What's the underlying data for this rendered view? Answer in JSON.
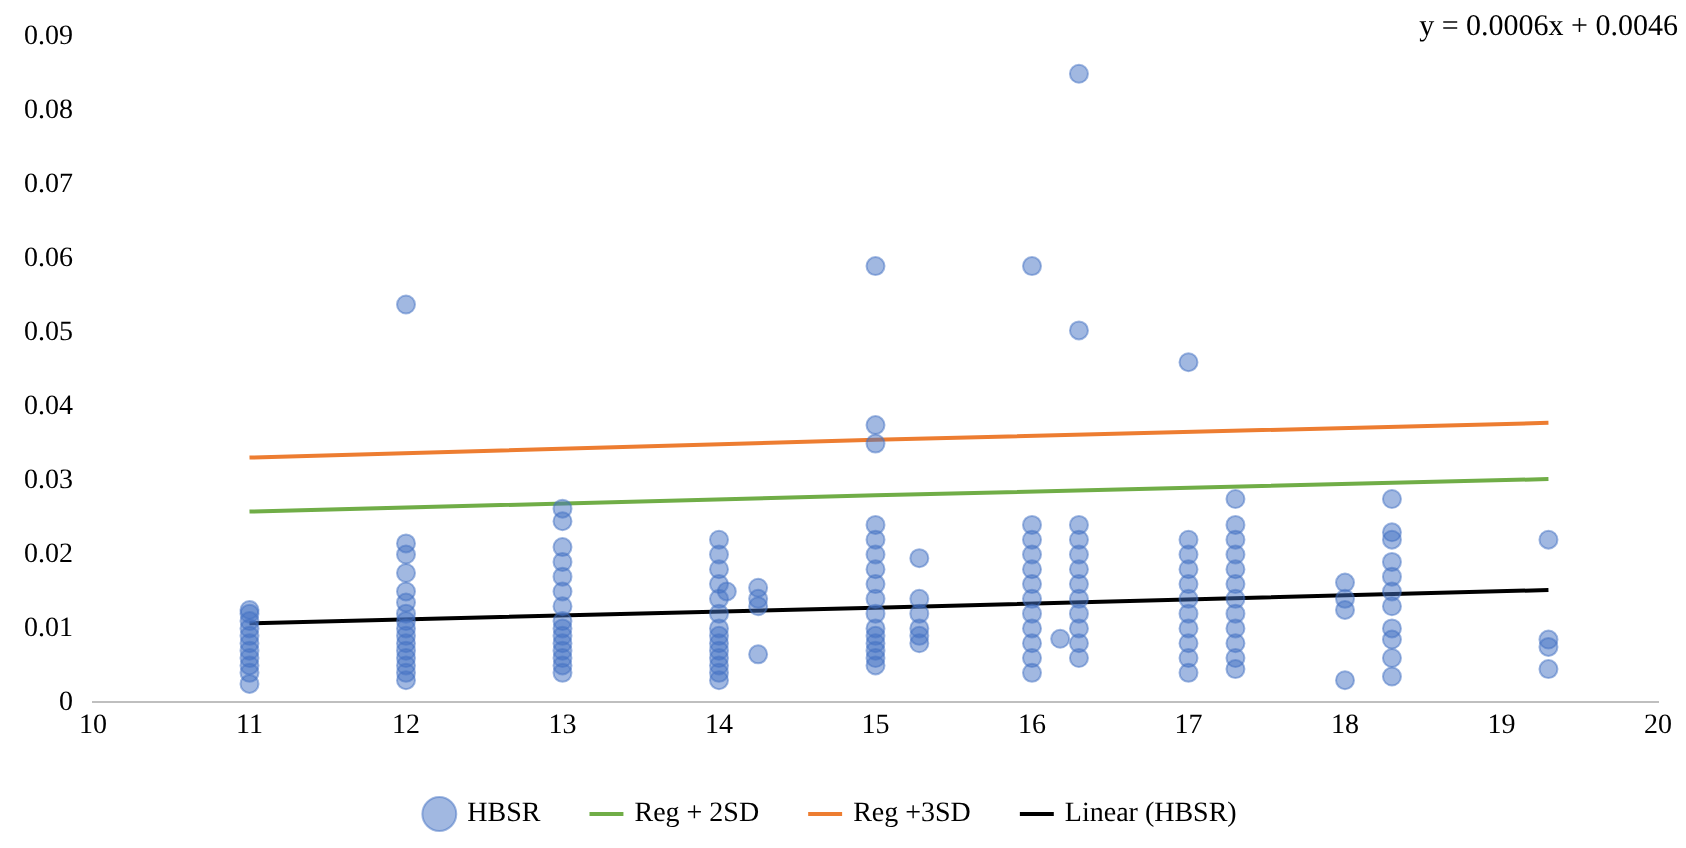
{
  "chart_data": {
    "type": "scatter",
    "xlim": [
      10,
      20
    ],
    "xticks": [
      10,
      11,
      12,
      13,
      14,
      15,
      16,
      17,
      18,
      19,
      20
    ],
    "ylim": [
      0,
      0.09
    ],
    "yticks": [
      0,
      0.01,
      0.02,
      0.03,
      0.04,
      0.05,
      0.06,
      0.07,
      0.08,
      0.09
    ],
    "grid": false,
    "legend": "bottom",
    "annotations": [
      "y = 0.0006x + 0.0046"
    ],
    "series": [
      {
        "name": "HBSR",
        "type": "scatter",
        "marker": "circle",
        "color": "#4472c4",
        "x": [
          11,
          11,
          11,
          11,
          11,
          11,
          11,
          11,
          11,
          11,
          11,
          12,
          12,
          12,
          12,
          12,
          12,
          12,
          12,
          12,
          12,
          12,
          12,
          12,
          12,
          12,
          12,
          13,
          13,
          13,
          13,
          13,
          13,
          13,
          13,
          13,
          13,
          13,
          13,
          13,
          13,
          13,
          14,
          14,
          14,
          14,
          14,
          14,
          14,
          14,
          14,
          14,
          14,
          14,
          14,
          14,
          14.05,
          14.25,
          14.25,
          14.25,
          14.25,
          15,
          15,
          15,
          15,
          15,
          15,
          15,
          15,
          15,
          15,
          15,
          15,
          15,
          15,
          15,
          15,
          15.28,
          15.28,
          15.28,
          15.28,
          15.28,
          15.28,
          16,
          16,
          16,
          16,
          16,
          16,
          16,
          16,
          16,
          16,
          16,
          16,
          16.18,
          16.3,
          16.3,
          16.3,
          16.3,
          16.3,
          16.3,
          16.3,
          16.3,
          16.3,
          16.3,
          16.3,
          16.3,
          17,
          17,
          17,
          17,
          17,
          17,
          17,
          17,
          17,
          17,
          17,
          17.3,
          17.3,
          17.3,
          17.3,
          17.3,
          17.3,
          17.3,
          17.3,
          17.3,
          17.3,
          17.3,
          17.3,
          18,
          18,
          18,
          18,
          18.3,
          18.3,
          18.3,
          18.3,
          18.3,
          18.3,
          18.3,
          18.3,
          18.3,
          18.3,
          18.3,
          19.3,
          19.3,
          19.3,
          19.3
        ],
        "values": [
          0.0125,
          0.012,
          0.011,
          0.01,
          0.009,
          0.008,
          0.007,
          0.006,
          0.005,
          0.004,
          0.0025,
          0.0538,
          0.0215,
          0.02,
          0.0175,
          0.015,
          0.0135,
          0.012,
          0.011,
          0.01,
          0.009,
          0.008,
          0.007,
          0.006,
          0.005,
          0.004,
          0.003,
          0.0262,
          0.0245,
          0.021,
          0.019,
          0.017,
          0.015,
          0.013,
          0.011,
          0.01,
          0.009,
          0.008,
          0.007,
          0.006,
          0.005,
          0.004,
          0.022,
          0.02,
          0.018,
          0.016,
          0.014,
          0.012,
          0.01,
          0.009,
          0.008,
          0.007,
          0.006,
          0.005,
          0.004,
          0.003,
          0.015,
          0.0155,
          0.014,
          0.013,
          0.0065,
          0.059,
          0.0375,
          0.035,
          0.024,
          0.022,
          0.02,
          0.018,
          0.016,
          0.014,
          0.012,
          0.01,
          0.009,
          0.008,
          0.007,
          0.006,
          0.005,
          0.0195,
          0.014,
          0.012,
          0.01,
          0.009,
          0.008,
          0.059,
          0.024,
          0.022,
          0.02,
          0.018,
          0.016,
          0.014,
          0.012,
          0.01,
          0.008,
          0.006,
          0.004,
          0.0086,
          0.085,
          0.0503,
          0.024,
          0.022,
          0.02,
          0.018,
          0.016,
          0.014,
          0.012,
          0.01,
          0.008,
          0.006,
          0.046,
          0.022,
          0.02,
          0.018,
          0.016,
          0.014,
          0.012,
          0.01,
          0.008,
          0.006,
          0.004,
          0.0275,
          0.024,
          0.022,
          0.02,
          0.018,
          0.016,
          0.014,
          0.012,
          0.01,
          0.008,
          0.006,
          0.0045,
          0.0162,
          0.014,
          0.0125,
          0.003,
          0.0275,
          0.023,
          0.022,
          0.019,
          0.017,
          0.015,
          0.013,
          0.01,
          0.0085,
          0.006,
          0.0035,
          0.022,
          0.0085,
          0.0075,
          0.0045
        ]
      },
      {
        "name": "Reg + 2SD",
        "type": "line",
        "marker": "none",
        "color": "#70ad47",
        "x": [
          11,
          15,
          19.3
        ],
        "values": [
          0.0258,
          0.028,
          0.0302
        ]
      },
      {
        "name": "Reg +3SD",
        "type": "line",
        "marker": "none",
        "color": "#ed7d31",
        "x": [
          11,
          15,
          19.3
        ],
        "values": [
          0.0331,
          0.0355,
          0.0378
        ]
      },
      {
        "name": "Linear (HBSR)",
        "type": "line",
        "marker": "none",
        "color": "#000000",
        "x": [
          11,
          15,
          19.3
        ],
        "values": [
          0.0107,
          0.0128,
          0.0152
        ]
      }
    ]
  }
}
